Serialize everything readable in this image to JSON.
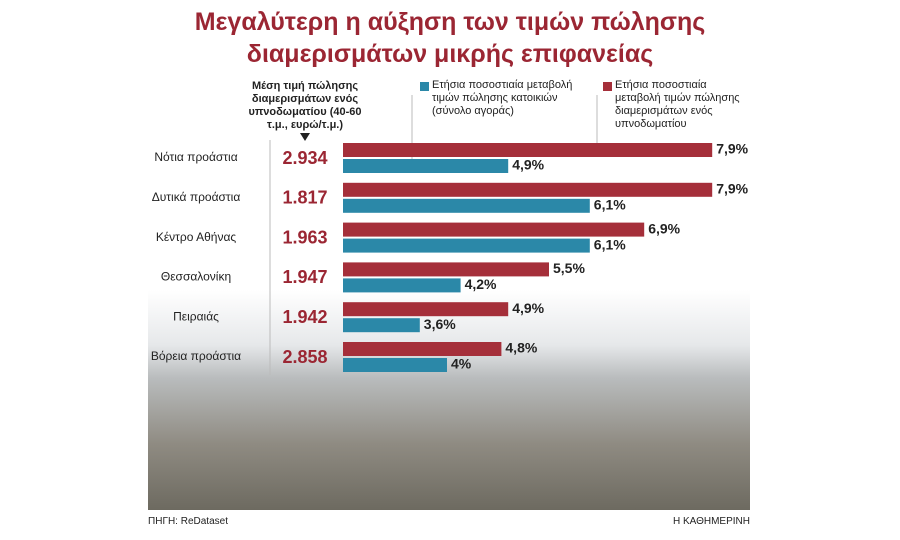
{
  "chart_data": {
    "type": "bar",
    "title": "Μεγαλύτερη η αύξηση των τιμών πώλησης διαμερισμάτων μικρής επιφανείας",
    "categories": [
      "Νότια προάστια",
      "Δυτικά προάστια",
      "Κέντρο Αθήνας",
      "Θεσσαλονίκη",
      "Πειραιάς",
      "Βόρεια προάστια"
    ],
    "price": {
      "title": "Μέση τιμή πώλησης διαμερισμάτων ενός υπνοδωματίου (40-60 τ.μ., ευρώ/τ.μ.)",
      "values": [
        2934,
        1817,
        1963,
        1947,
        1942,
        2858
      ],
      "value_labels": [
        "2.934",
        "1.817",
        "1.963",
        "1.947",
        "1.942",
        "2.858"
      ],
      "color": "#9b2633"
    },
    "series": [
      {
        "name": "Ετήσια ποσοστιαία μεταβολή τιμών πώλησης διαμερισμάτων ενός υπνοδωματίου",
        "color": "#a52f3a",
        "values": [
          7.9,
          7.9,
          6.9,
          5.5,
          4.9,
          4.8
        ],
        "value_labels": [
          "7,9%",
          "7,9%",
          "6,9%",
          "5,5%",
          "4,9%",
          "4,8%"
        ]
      },
      {
        "name": "Ετήσια ποσοστιαία μεταβολή τιμών πώλησης κατοικιών (σύνολο αγοράς)",
        "color": "#2b88a8",
        "values": [
          4.9,
          6.1,
          6.1,
          4.2,
          3.6,
          4
        ],
        "value_labels": [
          "4,9%",
          "6,1%",
          "6,1%",
          "4,2%",
          "3,6%",
          "4%"
        ]
      }
    ],
    "source": "ΠΗΓΗ: ReDataset",
    "publisher": "Η ΚΑΘΗΜΕΡΙΝΗ"
  }
}
